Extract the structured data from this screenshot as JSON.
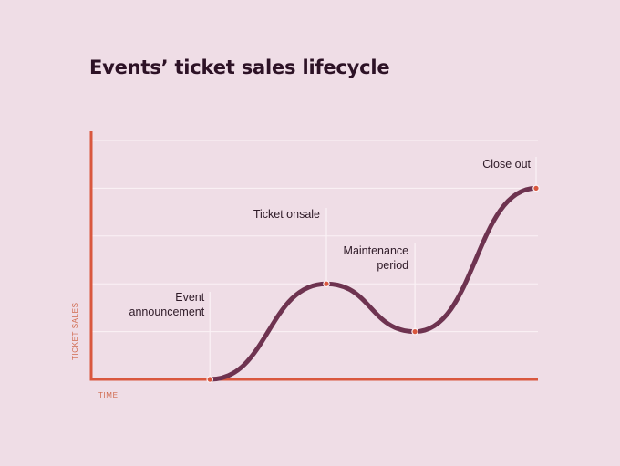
{
  "chart_data": {
    "type": "line",
    "title": "Events’ ticket sales lifecycle",
    "xlabel": "TIME",
    "ylabel": "TICKET SALES",
    "xlim": [
      0,
      10
    ],
    "ylim": [
      0,
      5
    ],
    "grid": true,
    "x_ticks": [],
    "y_ticks": [
      1,
      2,
      3,
      4,
      5
    ],
    "series": [
      {
        "color": "#6e3350",
        "points": [
          {
            "x": 3,
            "y": 0
          },
          {
            "x": 5.5,
            "y": 2
          },
          {
            "x": 7.4,
            "y": 1
          },
          {
            "x": 10,
            "y": 4
          }
        ]
      }
    ],
    "annotations": [
      {
        "lines": [
          "Event",
          "announcement"
        ],
        "x": 3,
        "y": 0
      },
      {
        "lines": [
          "Ticket onsale"
        ],
        "x": 5.5,
        "y": 2
      },
      {
        "lines": [
          "Maintenance",
          "period"
        ],
        "x": 7.4,
        "y": 1
      },
      {
        "lines": [
          "Close out"
        ],
        "x": 10,
        "y": 4
      }
    ],
    "colors": {
      "background": "#efdde6",
      "axis": "#d9573e",
      "grid": "#fbf2f6",
      "line": "#6e3350",
      "marker": "#d9573e",
      "text": "#2e1a27"
    }
  }
}
